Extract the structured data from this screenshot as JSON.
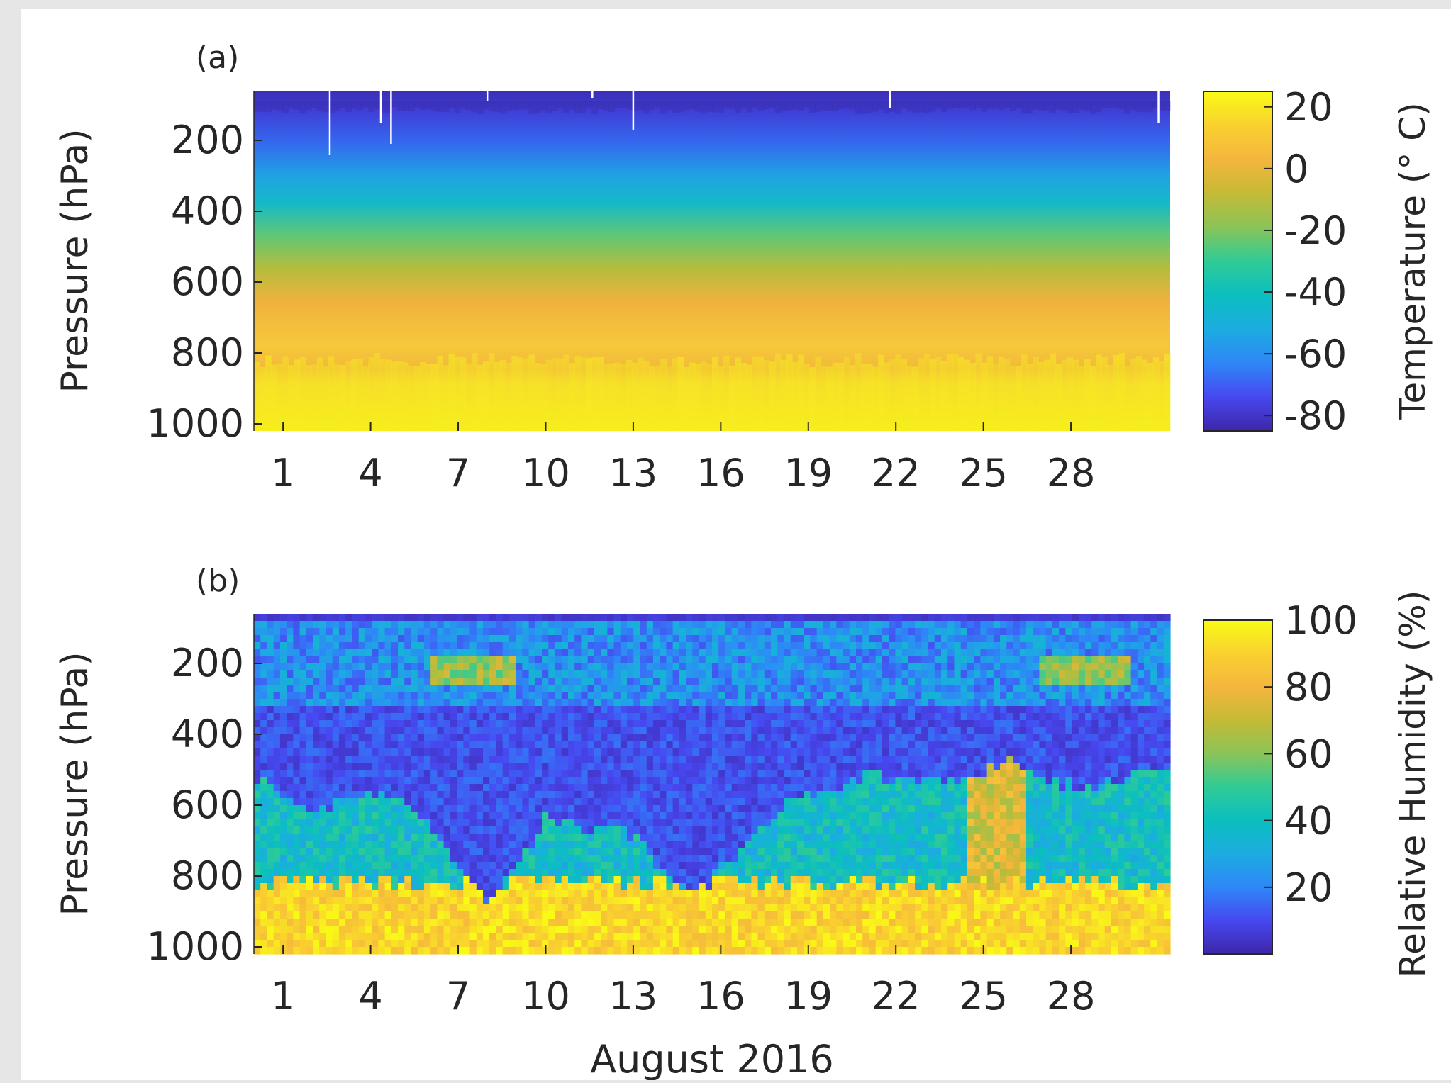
{
  "figure": {
    "xlabel": "August 2016"
  },
  "chart_data": [
    {
      "type": "heatmap",
      "panel_label": "(a)",
      "ylabel": "Pressure (hPa)",
      "colorbar_label": "Temperature (° C)",
      "x_ticks": [
        1,
        4,
        7,
        10,
        13,
        16,
        19,
        22,
        25,
        28
      ],
      "xlim": [
        0,
        31.4
      ],
      "y_ticks": [
        200,
        400,
        600,
        800,
        1000
      ],
      "ylim": [
        60,
        1020
      ],
      "y_reversed": true,
      "colorbar_ticks": [
        20,
        0,
        -20,
        -40,
        -60,
        -80
      ],
      "colorbar_range": [
        -85,
        25
      ],
      "colormap": [
        "#3e26a8",
        "#4748f0",
        "#2e87f7",
        "#1cace0",
        "#0bbfbf",
        "#2fcb96",
        "#8ac458",
        "#c5ba36",
        "#f4b63d",
        "#f9d12f",
        "#f9fb15"
      ],
      "description_rows": [
        {
          "pressure": 60,
          "value": -78
        },
        {
          "pressure": 150,
          "value": -60
        },
        {
          "pressure": 250,
          "value": -45
        },
        {
          "pressure": 350,
          "value": -30
        },
        {
          "pressure": 450,
          "value": -18
        },
        {
          "pressure": 550,
          "value": -6
        },
        {
          "pressure": 650,
          "value": 2
        },
        {
          "pressure": 750,
          "value": 8
        },
        {
          "pressure": 850,
          "value": 14
        },
        {
          "pressure": 1000,
          "value": 20
        }
      ]
    },
    {
      "type": "heatmap",
      "panel_label": "(b)",
      "ylabel": "Pressure (hPa)",
      "colorbar_label": "Relative Humidity (%)",
      "x_ticks": [
        1,
        4,
        7,
        10,
        13,
        16,
        19,
        22,
        25,
        28
      ],
      "xlim": [
        0,
        31.4
      ],
      "y_ticks": [
        200,
        400,
        600,
        800,
        1000
      ],
      "ylim": [
        60,
        1020
      ],
      "y_reversed": true,
      "colorbar_ticks": [
        100,
        80,
        60,
        40,
        20
      ],
      "colorbar_range": [
        0,
        100
      ],
      "colormap": [
        "#3e26a8",
        "#4748f0",
        "#2e87f7",
        "#1cace0",
        "#0bbfbf",
        "#2fcb96",
        "#8ac458",
        "#c5ba36",
        "#f4b63d",
        "#f9d12f",
        "#f9fb15"
      ],
      "moist_layer_top_by_day": [
        {
          "day": 0,
          "top_pressure": 520
        },
        {
          "day": 2,
          "top_pressure": 620
        },
        {
          "day": 4,
          "top_pressure": 560
        },
        {
          "day": 6,
          "top_pressure": 640
        },
        {
          "day": 8,
          "top_pressure": 880
        },
        {
          "day": 10,
          "top_pressure": 640
        },
        {
          "day": 13,
          "top_pressure": 680
        },
        {
          "day": 15,
          "top_pressure": 870
        },
        {
          "day": 18,
          "top_pressure": 600
        },
        {
          "day": 21,
          "top_pressure": 520
        },
        {
          "day": 24,
          "top_pressure": 540
        },
        {
          "day": 26,
          "top_pressure": 480
        },
        {
          "day": 28,
          "top_pressure": 550
        },
        {
          "day": 31,
          "top_pressure": 500
        }
      ],
      "boundary_layer_top_pressure": 820
    }
  ]
}
